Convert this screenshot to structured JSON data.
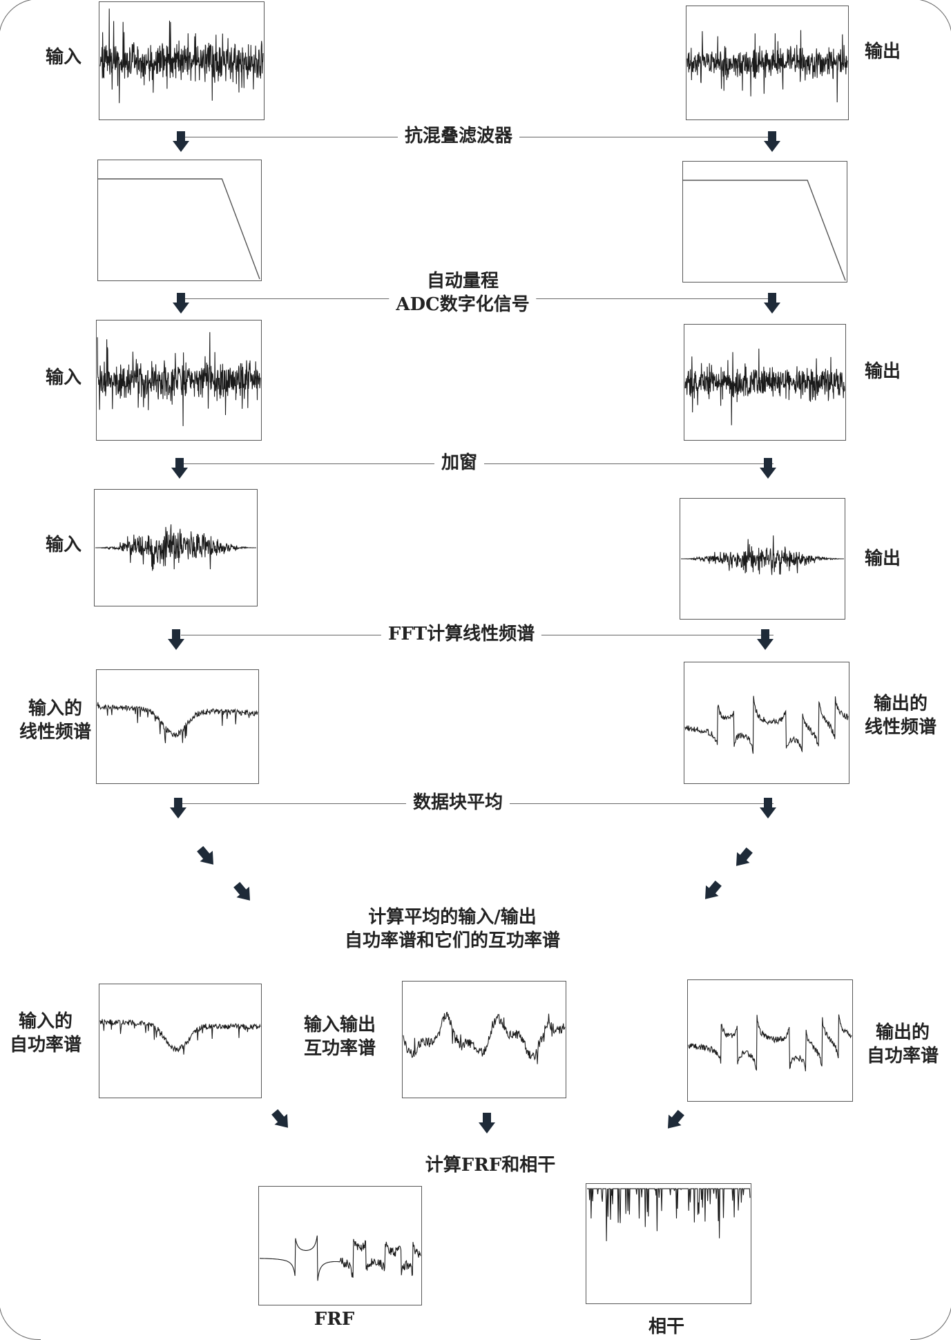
{
  "labels": {
    "input": "输入",
    "output": "输出",
    "input_linear_l1": "输入的",
    "input_linear_l2": "线性频谱",
    "output_linear_l1": "输出的",
    "output_linear_l2": "线性频谱",
    "input_auto_l1": "输入的",
    "input_auto_l2": "自功率谱",
    "cross_l1": "输入输出",
    "cross_l2": "互功率谱",
    "output_auto_l1": "输出的",
    "output_auto_l2": "自功率谱"
  },
  "stages": {
    "anti_alias": "抗混叠滤波器",
    "autorange_l1": "自动量程",
    "autorange_l2": "ADC数字化信号",
    "window": "加窗",
    "fft": "FFT计算线性频谱",
    "block_avg": "数据块平均",
    "avg_l1": "计算平均的输入/输出",
    "avg_l2": "自功率谱和它们的互功率谱",
    "frf_coh": "计算FRF和相干"
  },
  "captions": {
    "frf": "FRF",
    "coherence": "相干"
  },
  "colors": {
    "signal": "#1a1a1a",
    "frame": "#555555",
    "arrow": "#1e2a38",
    "line": "#666666"
  }
}
